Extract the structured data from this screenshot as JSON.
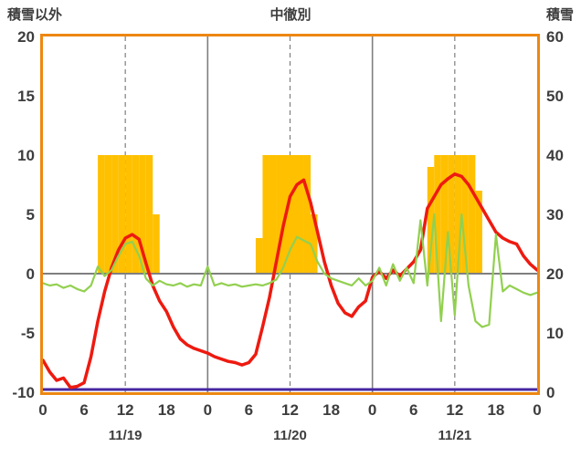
{
  "chart_data": {
    "type": "line",
    "title": "中徹別",
    "left_axis": {
      "label": "積雪以外",
      "min": -10,
      "max": 20,
      "ticks": [
        20,
        15,
        10,
        5,
        0,
        -5,
        -10
      ]
    },
    "right_axis": {
      "label": "積雪",
      "min": 0,
      "max": 60,
      "ticks": [
        60,
        50,
        40,
        30,
        20,
        10,
        0
      ]
    },
    "x_axis": {
      "unit": "hour",
      "total_hours": 72,
      "hour_ticks": [
        {
          "hour": 0,
          "label": "0"
        },
        {
          "hour": 6,
          "label": "6"
        },
        {
          "hour": 12,
          "label": "12"
        },
        {
          "hour": 18,
          "label": "18"
        },
        {
          "hour": 24,
          "label": "0"
        },
        {
          "hour": 30,
          "label": "6"
        },
        {
          "hour": 36,
          "label": "12"
        },
        {
          "hour": 42,
          "label": "18"
        },
        {
          "hour": 48,
          "label": "0"
        },
        {
          "hour": 54,
          "label": "6"
        },
        {
          "hour": 60,
          "label": "12"
        },
        {
          "hour": 66,
          "label": "18"
        },
        {
          "hour": 72,
          "label": "0"
        }
      ],
      "date_labels": [
        {
          "hour": 12,
          "label": "11/19"
        },
        {
          "hour": 36,
          "label": "11/20"
        },
        {
          "hour": 60,
          "label": "11/21"
        }
      ]
    },
    "grid": {
      "v_solid_hours": [
        24,
        48
      ],
      "v_dashed_hours": [
        12,
        36,
        60
      ],
      "zero_line": true
    },
    "colors": {
      "border": "#ED8712",
      "grid": "#7F7F7F",
      "text": "#3D3D3D"
    },
    "series": [
      {
        "name": "sunshine-bars",
        "type": "bar",
        "axis": "left",
        "color": "#FFC000",
        "values": [
          0,
          0,
          0,
          0,
          0,
          0,
          0,
          0,
          10,
          10,
          10,
          10,
          10,
          10,
          10,
          10,
          5,
          0,
          0,
          0,
          0,
          0,
          0,
          0,
          0,
          0,
          0,
          0,
          0,
          0,
          0,
          3,
          10,
          10,
          10,
          10,
          10,
          10,
          10,
          5,
          0,
          0,
          0,
          0,
          0,
          0,
          0,
          0,
          0,
          0,
          0,
          0,
          0,
          0,
          0,
          0,
          9,
          10,
          10,
          10,
          10,
          10,
          10,
          7,
          0,
          0,
          0,
          0,
          0,
          0,
          0,
          0
        ]
      },
      {
        "name": "snow-depth-line",
        "type": "line",
        "axis": "right",
        "color": "#4527A0",
        "width": 3,
        "x": [
          0,
          72
        ],
        "values": [
          0,
          0
        ]
      },
      {
        "name": "temperature-line",
        "type": "line",
        "axis": "left",
        "color": "#EE1A10",
        "width": 3.5,
        "values": [
          -7.3,
          -8.3,
          -9.0,
          -8.8,
          -9.6,
          -9.5,
          -9.2,
          -7.0,
          -4.0,
          -1.5,
          0.5,
          2.0,
          3.0,
          3.3,
          2.9,
          0.9,
          -1.0,
          -2.3,
          -3.2,
          -4.5,
          -5.5,
          -6.0,
          -6.3,
          -6.5,
          -6.7,
          -7.0,
          -7.2,
          -7.4,
          -7.5,
          -7.7,
          -7.5,
          -6.8,
          -4.5,
          -2.0,
          1.0,
          4.0,
          6.5,
          7.5,
          7.9,
          6.0,
          3.5,
          1.0,
          -1.0,
          -2.5,
          -3.3,
          -3.6,
          -2.8,
          -2.3,
          -0.3,
          0.2,
          -0.4,
          0.3,
          -0.2,
          0.4,
          1.0,
          2.0,
          5.5,
          6.5,
          7.5,
          8.0,
          8.4,
          8.2,
          7.5,
          6.5,
          5.5,
          4.5,
          3.5,
          3.0,
          2.7,
          2.5,
          1.5,
          0.8,
          0.3
        ]
      },
      {
        "name": "green-line",
        "type": "line",
        "axis": "left",
        "color": "#92D050",
        "width": 2.2,
        "values": [
          -0.8,
          -1.0,
          -0.9,
          -1.2,
          -1.0,
          -1.3,
          -1.5,
          -1.0,
          0.6,
          -0.2,
          0.3,
          1.5,
          2.5,
          2.7,
          1.5,
          -0.4,
          -1.0,
          -0.6,
          -0.9,
          -1.0,
          -0.8,
          -1.1,
          -0.9,
          -1.0,
          0.6,
          -1.0,
          -0.8,
          -1.0,
          -0.9,
          -1.1,
          -1.0,
          -0.9,
          -1.0,
          -0.8,
          -0.5,
          0.5,
          2.0,
          3.1,
          2.8,
          2.5,
          1.0,
          0.0,
          -0.4,
          -0.6,
          -0.8,
          -1.0,
          -0.4,
          -1.0,
          -0.6,
          0.5,
          -1.0,
          0.8,
          -0.6,
          0.5,
          -0.8,
          4.5,
          -1.0,
          5.0,
          -4.0,
          3.5,
          -3.5,
          5.0,
          -1.0,
          -4.0,
          -4.5,
          -4.3,
          3.3,
          -1.5,
          -1.0,
          -1.3,
          -1.6,
          -1.8,
          -1.6
        ]
      }
    ]
  }
}
